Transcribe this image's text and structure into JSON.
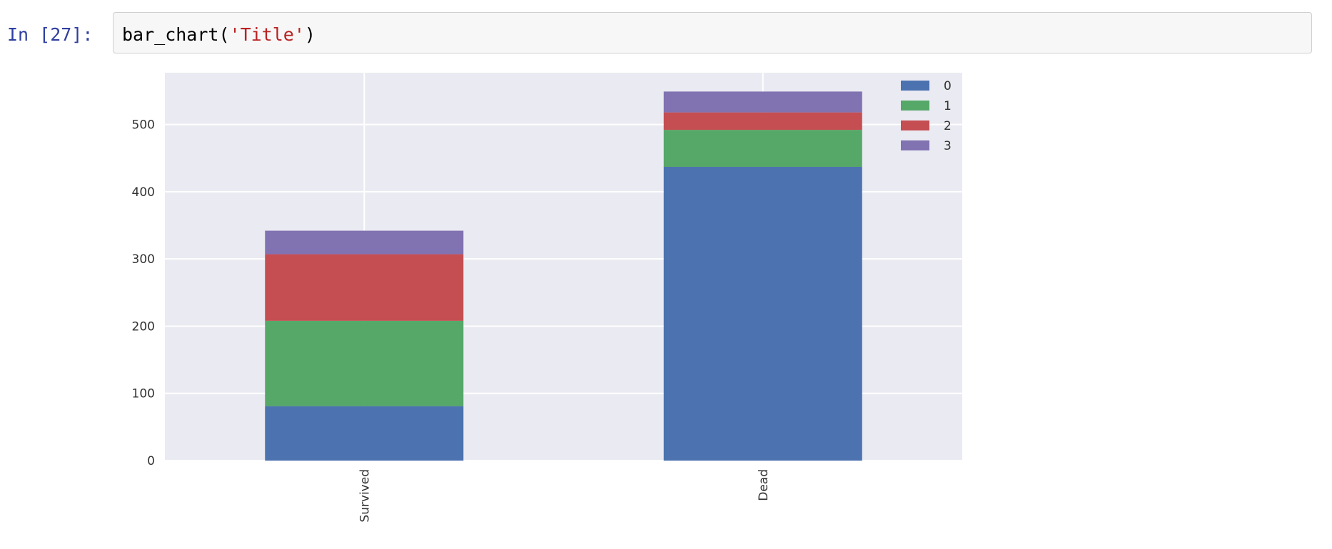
{
  "cell": {
    "prompt": "In [27]:",
    "code_func": "bar_chart(",
    "code_arg": "'Title'",
    "code_close": ")"
  },
  "colors": {
    "plot_bg": "#eaeaf2",
    "grid": "#ffffff",
    "series": [
      "#4c72b0",
      "#55a868",
      "#c44e52",
      "#8172b2"
    ]
  },
  "chart_data": {
    "type": "bar",
    "stacked": true,
    "categories": [
      "Survived",
      "Dead"
    ],
    "series": [
      {
        "name": "0",
        "values": [
          81,
          437
        ]
      },
      {
        "name": "1",
        "values": [
          127,
          55
        ]
      },
      {
        "name": "2",
        "values": [
          99,
          26
        ]
      },
      {
        "name": "3",
        "values": [
          35,
          31
        ]
      }
    ],
    "yticks": [
      0,
      100,
      200,
      300,
      400,
      500
    ],
    "ylim": [
      0,
      577
    ],
    "grid": true,
    "legend": "top-right",
    "title": "",
    "xlabel": "",
    "ylabel": ""
  }
}
